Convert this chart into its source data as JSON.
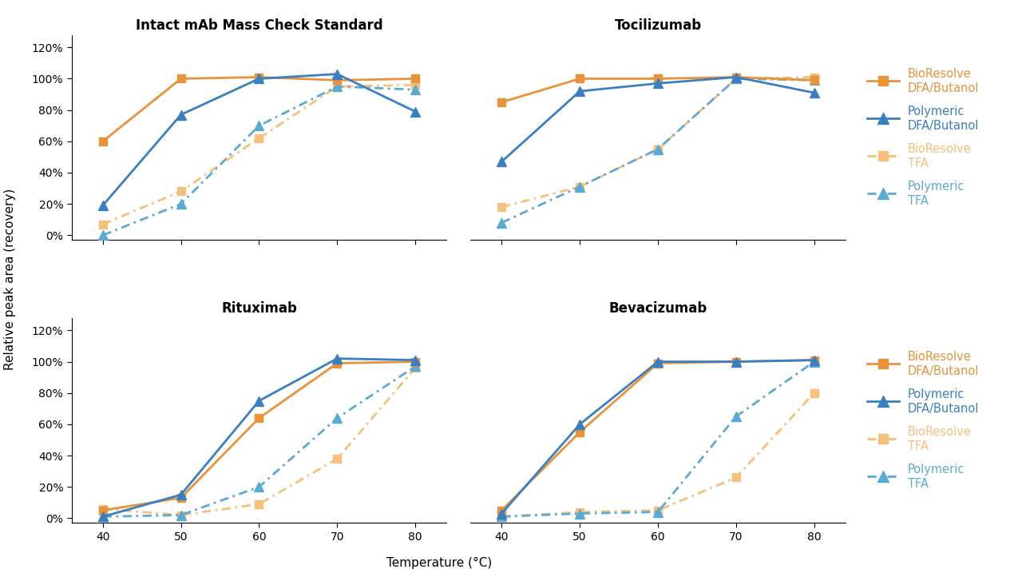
{
  "temps": [
    40,
    50,
    60,
    70,
    80
  ],
  "subplots": [
    {
      "title": "Intact mAb Mass Check Standard",
      "bioresolve_dfa": [
        60,
        100,
        101,
        99,
        100
      ],
      "polymeric_dfa": [
        19,
        77,
        100,
        103,
        79
      ],
      "bioresolve_tfa": [
        7,
        28,
        62,
        95,
        96
      ],
      "polymeric_tfa": [
        0,
        20,
        70,
        95,
        93
      ]
    },
    {
      "title": "Tocilizumab",
      "bioresolve_dfa": [
        85,
        100,
        100,
        101,
        99
      ],
      "polymeric_dfa": [
        47,
        92,
        97,
        101,
        91
      ],
      "bioresolve_tfa": [
        18,
        31,
        55,
        100,
        101
      ],
      "polymeric_tfa": [
        8,
        31,
        55,
        100,
        99
      ]
    },
    {
      "title": "Rituximab",
      "bioresolve_dfa": [
        5,
        13,
        64,
        99,
        100
      ],
      "polymeric_dfa": [
        1,
        15,
        75,
        102,
        101
      ],
      "bioresolve_tfa": [
        6,
        2,
        9,
        38,
        96
      ],
      "polymeric_tfa": [
        1,
        2,
        20,
        64,
        97
      ]
    },
    {
      "title": "Bevacizumab",
      "bioresolve_dfa": [
        5,
        55,
        99,
        100,
        101
      ],
      "polymeric_dfa": [
        3,
        60,
        100,
        100,
        101
      ],
      "bioresolve_tfa": [
        1,
        4,
        5,
        26,
        80
      ],
      "polymeric_tfa": [
        1,
        3,
        4,
        65,
        100
      ]
    }
  ],
  "color_orange": "#E8923A",
  "color_blue": "#3A7FC1",
  "color_orange_light": "#F5C07A",
  "color_blue_light": "#5BAAD4",
  "ylabel": "Relative peak area (recovery)",
  "xlabel": "Temperature (°C)",
  "legend_labels": [
    "BioResolve\nDFA/Butanol",
    "Polymeric\nDFA/Butanol",
    "BioResolve\nTFA",
    "Polymeric\nTFA"
  ],
  "background_color": "#ffffff"
}
